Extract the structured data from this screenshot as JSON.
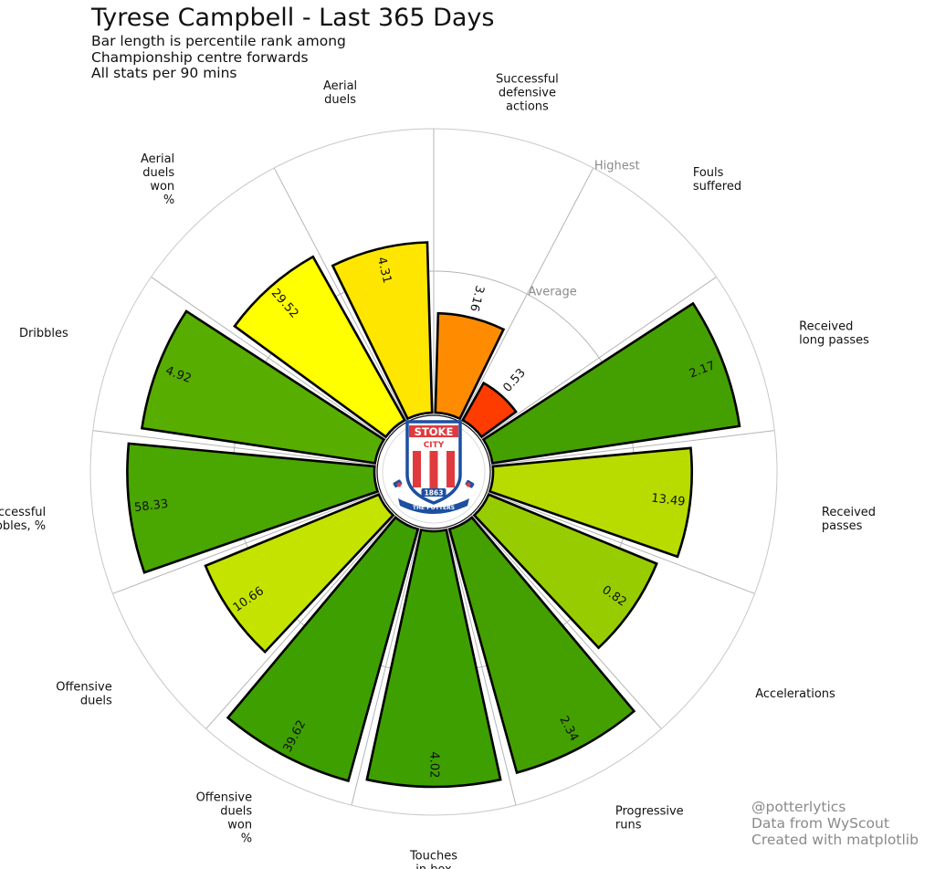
{
  "header": {
    "title": "Tyrese Campbell - Last 365 Days",
    "subtitle_lines": [
      "Bar length is percentile rank among",
      "Championship centre forwards",
      "All stats per 90 mins"
    ]
  },
  "footer": {
    "credit_lines": [
      "@potterlytics",
      "Data from WyScout",
      "Created with matplotlib"
    ]
  },
  "logo": {
    "text_top": "STOKE",
    "text_mid": "CITY",
    "year": "1863",
    "motto": "THE POTTERS"
  },
  "chart_data": {
    "type": "bar",
    "projection": "polar",
    "title": "Tyrese Campbell - Last 365 Days",
    "value_axis": "percentile rank",
    "rlim": [
      0,
      100
    ],
    "ring_labels": [
      "Average",
      "Highest"
    ],
    "grid": true,
    "categories": [
      {
        "label": [
          "Fouls",
          "suffered"
        ],
        "percentile": 15,
        "value": "0.53",
        "color": "#ff3c00"
      },
      {
        "label": [
          "Received",
          "long passes"
        ],
        "percentile": 88,
        "value": "2.17",
        "color": "#44a000"
      },
      {
        "label": [
          "Received",
          "passes"
        ],
        "percentile": 70,
        "value": "13.49",
        "color": "#b8dc00"
      },
      {
        "label": [
          "Accelerations"
        ],
        "percentile": 64,
        "value": "0.82",
        "color": "#97cd00"
      },
      {
        "label": [
          "Progressive",
          "runs"
        ],
        "percentile": 89,
        "value": "2.34",
        "color": "#44a000"
      },
      {
        "label": [
          "Touches",
          "in box"
        ],
        "percentile": 90,
        "value": "4.02",
        "color": "#3ea000"
      },
      {
        "label": [
          "Offensive",
          "duels",
          "won",
          "%"
        ],
        "percentile": 92,
        "value": "39.62",
        "color": "#3ea000"
      },
      {
        "label": [
          "Offensive",
          "duels"
        ],
        "percentile": 66,
        "value": "10.66",
        "color": "#c4e400"
      },
      {
        "label": [
          "Successful",
          "dribbles, %"
        ],
        "percentile": 87,
        "value": "58.33",
        "color": "#4aa600"
      },
      {
        "label": [
          "Dribbles"
        ],
        "percentile": 83,
        "value": "4.92",
        "color": "#57ad00"
      },
      {
        "label": [
          "Aerial",
          "duels",
          "won",
          "%"
        ],
        "percentile": 66,
        "value": "29.52",
        "color": "#ffff00"
      },
      {
        "label": [
          "Aerial",
          "duels"
        ],
        "percentile": 60,
        "value": "4.31",
        "color": "#ffe600"
      },
      {
        "label": [
          "Successful",
          "defensive",
          "actions"
        ],
        "percentile": 35,
        "value": "3.16",
        "color": "#ff8c00"
      }
    ]
  }
}
